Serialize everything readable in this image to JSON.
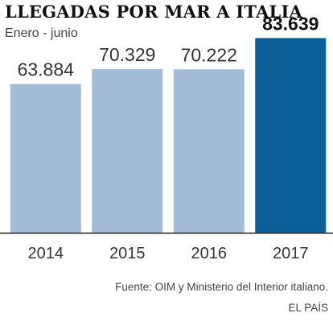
{
  "chart_data": {
    "type": "bar",
    "title": "LLEGADAS POR MAR A ITALIA",
    "subtitle": "Enero - junio",
    "categories": [
      "2014",
      "2015",
      "2016",
      "2017"
    ],
    "values": [
      63884,
      70329,
      70222,
      83639
    ],
    "data_labels": [
      "63.884",
      "70.329",
      "70.222",
      "83.639"
    ],
    "highlight_index": 3,
    "ylim": [
      0,
      100000
    ],
    "grid": false,
    "colors": {
      "bar": "#a3bcd8",
      "highlight": "#0a5f97",
      "axis": "#222222"
    },
    "source": "Fuente: OIM y Ministerio del Interior italiano.",
    "credit": "EL PAÍS"
  }
}
